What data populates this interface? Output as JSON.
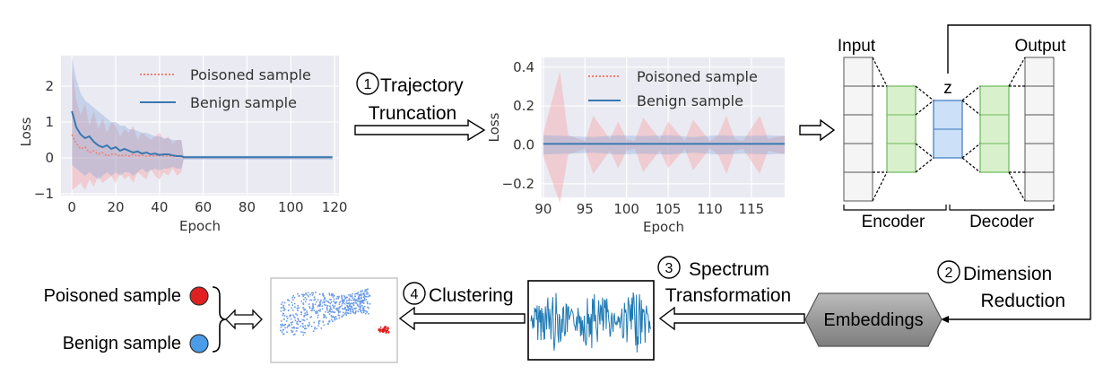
{
  "chart_data": [
    {
      "type": "line",
      "xlabel": "Epoch",
      "ylabel": "Loss",
      "xlim": [
        -5,
        122
      ],
      "ylim": [
        -1.05,
        2.85
      ],
      "xticks": [
        0,
        20,
        40,
        60,
        80,
        100,
        120
      ],
      "xticklabels": [
        "0",
        "20",
        "40",
        "60",
        "80",
        "100",
        "120"
      ],
      "yticks": [
        -1,
        0,
        1,
        2
      ],
      "yticklabels": [
        "−1",
        "0",
        "1",
        "2"
      ],
      "grid": true,
      "legend_position": "top-right",
      "series": [
        {
          "name": "Poisoned sample",
          "color": "#f08070",
          "style": "dotted",
          "x": [
            0,
            2,
            4,
            6,
            8,
            10,
            12,
            14,
            16,
            18,
            20,
            22,
            24,
            26,
            28,
            30,
            32,
            34,
            36,
            38,
            40,
            42,
            44,
            46,
            48,
            50,
            51,
            55,
            60,
            70,
            80,
            90,
            100,
            110,
            119
          ],
          "y": [
            0.65,
            0.4,
            0.25,
            0.3,
            0.15,
            0.2,
            0.1,
            0.15,
            0.05,
            0.1,
            0.1,
            0.05,
            0.08,
            0.05,
            0.1,
            0.05,
            0.08,
            0.04,
            0.06,
            0.05,
            0.1,
            0.05,
            0.06,
            0.04,
            0.05,
            0.05,
            0.01,
            0.01,
            0.01,
            0.01,
            0.01,
            0.01,
            0.01,
            0.01,
            0.01
          ],
          "band_low": [
            -0.9,
            -0.8,
            -0.7,
            -0.9,
            -0.6,
            -0.8,
            -0.5,
            -0.7,
            -0.6,
            -0.5,
            -0.7,
            -0.4,
            -0.6,
            -0.5,
            -0.7,
            -0.4,
            -0.5,
            -0.6,
            -0.3,
            -0.5,
            -0.6,
            -0.4,
            -0.5,
            -0.3,
            -0.5,
            -0.4,
            -0.02,
            -0.02,
            -0.02,
            -0.02,
            -0.02,
            -0.02,
            -0.02,
            -0.02,
            -0.02
          ],
          "band_high": [
            2.5,
            1.6,
            1.2,
            1.5,
            0.9,
            1.3,
            0.8,
            1.1,
            0.7,
            1.0,
            0.9,
            0.6,
            0.8,
            0.7,
            0.9,
            0.5,
            0.7,
            0.6,
            0.5,
            0.6,
            0.7,
            0.5,
            0.6,
            0.4,
            0.5,
            0.5,
            0.03,
            0.03,
            0.03,
            0.03,
            0.03,
            0.03,
            0.03,
            0.03,
            0.03
          ]
        },
        {
          "name": "Benign sample",
          "color": "#3a78b0",
          "style": "solid",
          "x": [
            0,
            2,
            4,
            6,
            8,
            10,
            12,
            14,
            16,
            18,
            20,
            22,
            24,
            26,
            28,
            30,
            32,
            34,
            36,
            38,
            40,
            42,
            44,
            46,
            48,
            50,
            51,
            55,
            60,
            70,
            80,
            90,
            100,
            110,
            119
          ],
          "y": [
            1.3,
            0.85,
            0.65,
            0.55,
            0.6,
            0.45,
            0.35,
            0.3,
            0.35,
            0.25,
            0.3,
            0.2,
            0.25,
            0.2,
            0.15,
            0.18,
            0.12,
            0.15,
            0.1,
            0.12,
            0.08,
            0.1,
            0.1,
            0.07,
            0.05,
            0.05,
            0.02,
            0.02,
            0.02,
            0.02,
            0.02,
            0.02,
            0.02,
            0.02,
            0.02
          ],
          "band_low": [
            -0.2,
            -0.3,
            -0.4,
            -0.5,
            -0.4,
            -0.5,
            -0.6,
            -0.5,
            -0.4,
            -0.5,
            -0.4,
            -0.5,
            -0.4,
            -0.4,
            -0.5,
            -0.4,
            -0.3,
            -0.4,
            -0.35,
            -0.3,
            -0.35,
            -0.3,
            -0.3,
            -0.25,
            -0.3,
            -0.3,
            -0.05,
            -0.05,
            -0.05,
            -0.05,
            -0.05,
            -0.05,
            -0.05,
            -0.05,
            -0.05
          ],
          "band_high": [
            2.8,
            2.2,
            1.8,
            1.6,
            1.5,
            1.4,
            1.3,
            1.2,
            1.1,
            1.0,
            1.0,
            0.9,
            0.9,
            0.8,
            0.8,
            0.75,
            0.7,
            0.7,
            0.65,
            0.6,
            0.6,
            0.55,
            0.55,
            0.5,
            0.5,
            0.5,
            0.06,
            0.06,
            0.06,
            0.06,
            0.06,
            0.06,
            0.06,
            0.06,
            0.06
          ]
        }
      ]
    },
    {
      "type": "line",
      "xlabel": "Epoch",
      "ylabel": "Loss",
      "xlim": [
        89.8,
        119
      ],
      "ylim": [
        -0.27,
        0.45
      ],
      "xticks": [
        90,
        95,
        100,
        105,
        110,
        115
      ],
      "xticklabels": [
        "90",
        "95",
        "100",
        "105",
        "110",
        "115"
      ],
      "yticks": [
        -0.2,
        0,
        0.2,
        0.4
      ],
      "yticklabels": [
        "−0.2",
        "0.0",
        "0.2",
        "0.4"
      ],
      "grid": true,
      "legend_position": "top-right",
      "series": [
        {
          "name": "Poisoned sample",
          "color": "#f08070",
          "style": "dotted",
          "x": [
            90,
            92,
            93,
            95,
            96,
            98,
            99,
            100,
            101,
            102,
            104,
            105,
            107,
            108,
            110,
            111,
            112,
            113,
            114,
            116,
            117,
            119
          ],
          "y": [
            0.005,
            0.005,
            0.005,
            0.005,
            0.005,
            0.005,
            0.005,
            0.005,
            0.005,
            0.005,
            0.005,
            0.005,
            0.005,
            0.005,
            0.005,
            0.005,
            0.005,
            0.005,
            0.005,
            0.005,
            0.005,
            0.005
          ],
          "band_low": [
            -0.06,
            -0.3,
            -0.05,
            -0.02,
            -0.15,
            -0.03,
            -0.12,
            -0.03,
            -0.02,
            -0.14,
            -0.03,
            -0.12,
            -0.02,
            -0.13,
            -0.02,
            -0.05,
            -0.15,
            -0.03,
            -0.02,
            -0.15,
            -0.03,
            -0.05
          ],
          "band_high": [
            0.06,
            0.38,
            0.05,
            0.02,
            0.15,
            0.03,
            0.12,
            0.03,
            0.02,
            0.14,
            0.03,
            0.12,
            0.02,
            0.13,
            0.02,
            0.05,
            0.15,
            0.03,
            0.02,
            0.15,
            0.03,
            0.05
          ]
        },
        {
          "name": "Benign sample",
          "color": "#3a78b0",
          "style": "solid",
          "x": [
            90,
            93,
            96,
            99,
            102,
            105,
            108,
            111,
            114,
            117,
            119
          ],
          "y": [
            0.005,
            0.005,
            0.005,
            0.005,
            0.005,
            0.005,
            0.005,
            0.005,
            0.005,
            0.005,
            0.005
          ],
          "band_low": [
            -0.05,
            -0.045,
            -0.04,
            -0.05,
            -0.045,
            -0.05,
            -0.04,
            -0.05,
            -0.045,
            -0.05,
            -0.045
          ],
          "band_high": [
            0.05,
            0.045,
            0.04,
            0.05,
            0.045,
            0.05,
            0.04,
            0.05,
            0.045,
            0.05,
            0.045
          ]
        }
      ]
    }
  ],
  "steps": {
    "step1": {
      "number": "1",
      "line1": "Trajectory",
      "line2": "Truncation"
    },
    "step2": {
      "number": "2",
      "line1": "Dimension",
      "line2": "Reduction"
    },
    "step3": {
      "number": "3",
      "line1": "Spectrum",
      "line2": "Transformation"
    },
    "step4": {
      "number": "4",
      "line1": "Clustering"
    }
  },
  "autoencoder": {
    "input_label": "Input",
    "output_label": "Output",
    "latent_label": "z",
    "encoder_label": "Encoder",
    "decoder_label": "Decoder",
    "colors": {
      "input": "#f5f5f5",
      "hidden": "#d9f0cc",
      "hidden_stroke": "#6db85a",
      "latent": "#cce0f8",
      "latent_stroke": "#3b78c0"
    }
  },
  "embeddings_label": "Embeddings",
  "results": {
    "poisoned_label": "Poisoned sample",
    "benign_label": "Benign sample",
    "poisoned_color": "#e02020",
    "benign_color": "#4a9be8"
  },
  "colors": {
    "axes_bg": "#eaeaf2",
    "grid": "#ffffff",
    "spectrum": "#1f7ab4",
    "scatter_benign": "#6a9be8",
    "scatter_poisoned": "#e01818",
    "embeddings_fill": "#9a9a9a"
  }
}
